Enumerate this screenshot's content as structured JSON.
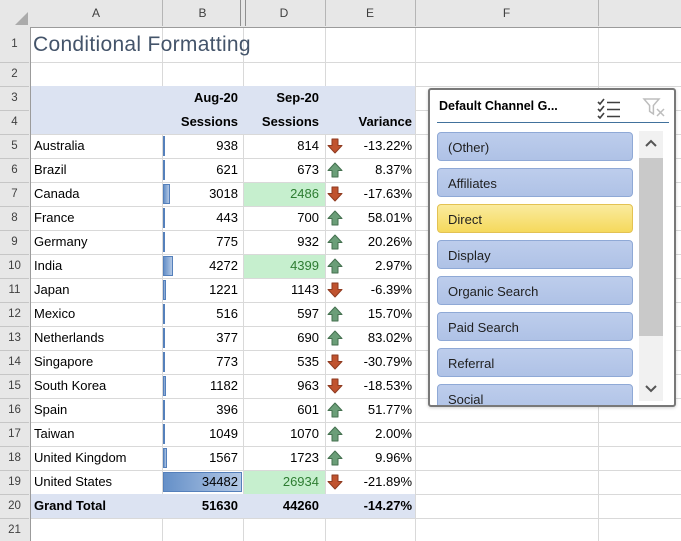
{
  "title": "Conditional Formatting",
  "colors": {
    "pivot_header_fill": "#DCE3F2",
    "good_fill": "#C6EFCE",
    "good_text": "#2E7D32",
    "bar_fill_start": "#6590C8",
    "bar_fill_end": "#B3C8E5",
    "bar_border": "#5580BB",
    "up_arrow": "#6B9E78",
    "up_arrow_border": "#44704F",
    "down_arrow": "#C0532F",
    "down_arrow_border": "#8E3A1F",
    "title_text": "#44546A",
    "slicer_item_fill_top": "#BDCDEC",
    "slicer_item_fill_bottom": "#AFC2E6",
    "slicer_item_border": "#8FA9D6",
    "slicer_selected_fill_top": "#FAEB9E",
    "slicer_selected_fill_bottom": "#F5D95C",
    "slicer_selected_border": "#E3C253"
  },
  "spreadsheet": {
    "column_headers": [
      "A",
      "B",
      "D",
      "E",
      "F",
      ""
    ],
    "row_numbers": [
      "1",
      "2",
      "3",
      "4",
      "5",
      "6",
      "7",
      "8",
      "9",
      "10",
      "11",
      "12",
      "13",
      "14",
      "15",
      "16",
      "17",
      "18",
      "19",
      "20",
      "21"
    ]
  },
  "pivot": {
    "col1_header": "Aug-20",
    "col2_header": "Sep-20",
    "col1_subheader": "Sessions",
    "col2_subheader": "Sessions",
    "variance_header": "Variance",
    "max_aug": 34482,
    "rows": [
      {
        "country": "Australia",
        "aug": 938,
        "sep": 814,
        "variance": "-13.22%",
        "direction": "down",
        "sep_good": false
      },
      {
        "country": "Brazil",
        "aug": 621,
        "sep": 673,
        "variance": "8.37%",
        "direction": "up",
        "sep_good": false
      },
      {
        "country": "Canada",
        "aug": 3018,
        "sep": 2486,
        "variance": "-17.63%",
        "direction": "down",
        "sep_good": true
      },
      {
        "country": "France",
        "aug": 443,
        "sep": 700,
        "variance": "58.01%",
        "direction": "up",
        "sep_good": false
      },
      {
        "country": "Germany",
        "aug": 775,
        "sep": 932,
        "variance": "20.26%",
        "direction": "up",
        "sep_good": false
      },
      {
        "country": "India",
        "aug": 4272,
        "sep": 4399,
        "variance": "2.97%",
        "direction": "up",
        "sep_good": true
      },
      {
        "country": "Japan",
        "aug": 1221,
        "sep": 1143,
        "variance": "-6.39%",
        "direction": "down",
        "sep_good": false
      },
      {
        "country": "Mexico",
        "aug": 516,
        "sep": 597,
        "variance": "15.70%",
        "direction": "up",
        "sep_good": false
      },
      {
        "country": "Netherlands",
        "aug": 377,
        "sep": 690,
        "variance": "83.02%",
        "direction": "up",
        "sep_good": false
      },
      {
        "country": "Singapore",
        "aug": 773,
        "sep": 535,
        "variance": "-30.79%",
        "direction": "down",
        "sep_good": false
      },
      {
        "country": "South Korea",
        "aug": 1182,
        "sep": 963,
        "variance": "-18.53%",
        "direction": "down",
        "sep_good": false
      },
      {
        "country": "Spain",
        "aug": 396,
        "sep": 601,
        "variance": "51.77%",
        "direction": "up",
        "sep_good": false
      },
      {
        "country": "Taiwan",
        "aug": 1049,
        "sep": 1070,
        "variance": "2.00%",
        "direction": "up",
        "sep_good": false
      },
      {
        "country": "United Kingdom",
        "aug": 1567,
        "sep": 1723,
        "variance": "9.96%",
        "direction": "up",
        "sep_good": false
      },
      {
        "country": "United States",
        "aug": 34482,
        "sep": 26934,
        "variance": "-21.89%",
        "direction": "down",
        "sep_good": true
      }
    ],
    "grand_total": {
      "label": "Grand Total",
      "aug": 51630,
      "sep": 44260,
      "variance": "-14.27%"
    }
  },
  "slicer": {
    "title": "Default Channel G...",
    "items": [
      {
        "label": "(Other)",
        "selected": false
      },
      {
        "label": "Affiliates",
        "selected": false
      },
      {
        "label": "Direct",
        "selected": true
      },
      {
        "label": "Display",
        "selected": false
      },
      {
        "label": "Organic Search",
        "selected": false
      },
      {
        "label": "Paid Search",
        "selected": false
      },
      {
        "label": "Referral",
        "selected": false
      },
      {
        "label": "Social",
        "selected": false
      }
    ]
  }
}
